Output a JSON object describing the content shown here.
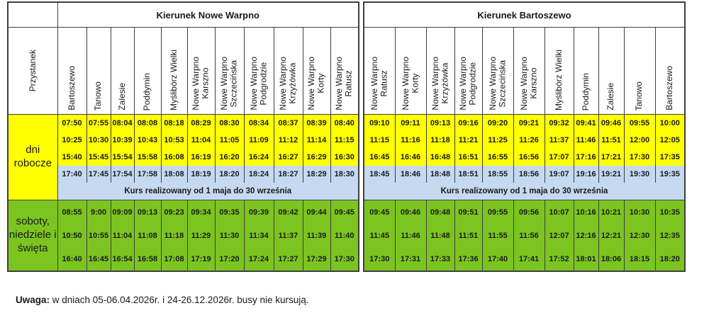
{
  "labels": {
    "stop_header": "Przystanek",
    "weekday": "dni robocze",
    "weekend": "soboty, niedziele i święta"
  },
  "colors": {
    "weekday_bg": "#FFFF00",
    "seasonal_bg": "#C5D9F1",
    "weekend_bg": "#7CC520",
    "border": "#3f3f3f"
  },
  "directions": [
    {
      "title": "Kierunek Nowe Warpno",
      "stops": [
        "Bartoszewo",
        "Tanowo",
        "Zalesie",
        "Poddymin",
        "Myślibórz Wielki",
        "Nowe Warpno\nKarszno",
        "Nowe Warpno\nSzczecińska",
        "Nowe Warpno\nPodgrodzie",
        "Nowe Warpno\nKrzyżówka",
        "Nowe Warpno\nKorty",
        "Nowe Warpno\nRatusz"
      ],
      "weekday_rows": [
        [
          "07:50",
          "07:55",
          "08:04",
          "08:08",
          "08:18",
          "08:29",
          "08:30",
          "08:34",
          "08:37",
          "08:39",
          "08:40"
        ],
        [
          "10:25",
          "10:30",
          "10:39",
          "10:43",
          "10:53",
          "11:04",
          "11:05",
          "11:09",
          "11:12",
          "11:14",
          "11:15"
        ],
        [
          "15:40",
          "15:45",
          "15:54",
          "15:58",
          "16:08",
          "16:19",
          "16:20",
          "16:24",
          "16:27",
          "16:29",
          "16:30"
        ]
      ],
      "weekday_seasonal_row": [
        "17:40",
        "17:45",
        "17:54",
        "17:58",
        "18:08",
        "18:19",
        "18:20",
        "18:24",
        "18:27",
        "18:29",
        "18:30"
      ],
      "seasonal_note": "Kurs realizowany od 1 maja do 30 września",
      "weekend_rows": [
        [
          "08:55",
          "9:00",
          "09:09",
          "09:13",
          "09:23",
          "09:34",
          "09:35",
          "09:39",
          "09:42",
          "09:44",
          "09:45"
        ],
        [
          "10:50",
          "10:55",
          "11:04",
          "11:08",
          "11:18",
          "11:29",
          "11:30",
          "11:34",
          "11:37",
          "11:39",
          "11:40"
        ],
        [
          "16:40",
          "16:45",
          "16:54",
          "16:58",
          "17:08",
          "17:19",
          "17:20",
          "17:24",
          "17:27",
          "17:29",
          "17:30"
        ]
      ]
    },
    {
      "title": "Kierunek Bartoszewo",
      "stops": [
        "Nowe Warpno\nRatusz",
        "Nowe Warpno\nKorty",
        "Nowe Warpno\nKrzyżówka",
        "Nowe Warpno\nPodgrodzie",
        "Nowe Warpno\nSzczecińska",
        "Nowe Warpno\nKarszno",
        "Myślibórz Wielki",
        "Poddymin",
        "Zalesie",
        "Tanowo",
        "Bartoszewo"
      ],
      "weekday_rows": [
        [
          "09:10",
          "09:11",
          "09:13",
          "09:16",
          "09:20",
          "09:21",
          "09:32",
          "09:41",
          "09:46",
          "09:55",
          "10:00"
        ],
        [
          "11:15",
          "11:16",
          "11:18",
          "11:21",
          "11:25",
          "11:26",
          "11:37",
          "11:46",
          "11:51",
          "12:00",
          "12:05"
        ],
        [
          "16:45",
          "16:46",
          "16:48",
          "16:51",
          "16:55",
          "16:56",
          "17:07",
          "17:16",
          "17:21",
          "17:30",
          "17:35"
        ]
      ],
      "weekday_seasonal_row": [
        "18:45",
        "18:46",
        "18:48",
        "18:51",
        "18:55",
        "18:56",
        "19:07",
        "19:16",
        "19:21",
        "19:30",
        "19:35"
      ],
      "seasonal_note": "Kurs realizowany od 1 maja do 30 września",
      "weekend_rows": [
        [
          "09:45",
          "09:46",
          "09:48",
          "09:51",
          "09:55",
          "09:56",
          "10:07",
          "10:16",
          "10:21",
          "10:30",
          "10:35"
        ],
        [
          "11:45",
          "11:46",
          "11:48",
          "11:51",
          "11:55",
          "11:56",
          "12:07",
          "12:16",
          "12:21",
          "12:30",
          "12:35"
        ],
        [
          "17:30",
          "17:31",
          "17:33",
          "17:36",
          "17:40",
          "17:41",
          "17:52",
          "18:01",
          "18:06",
          "18:15",
          "18:20"
        ]
      ]
    }
  ],
  "footer": {
    "bold": "Uwaga:",
    "text": " w dniach 05-06.04.2026r. i 24-26.12.2026r. busy nie kursują."
  }
}
